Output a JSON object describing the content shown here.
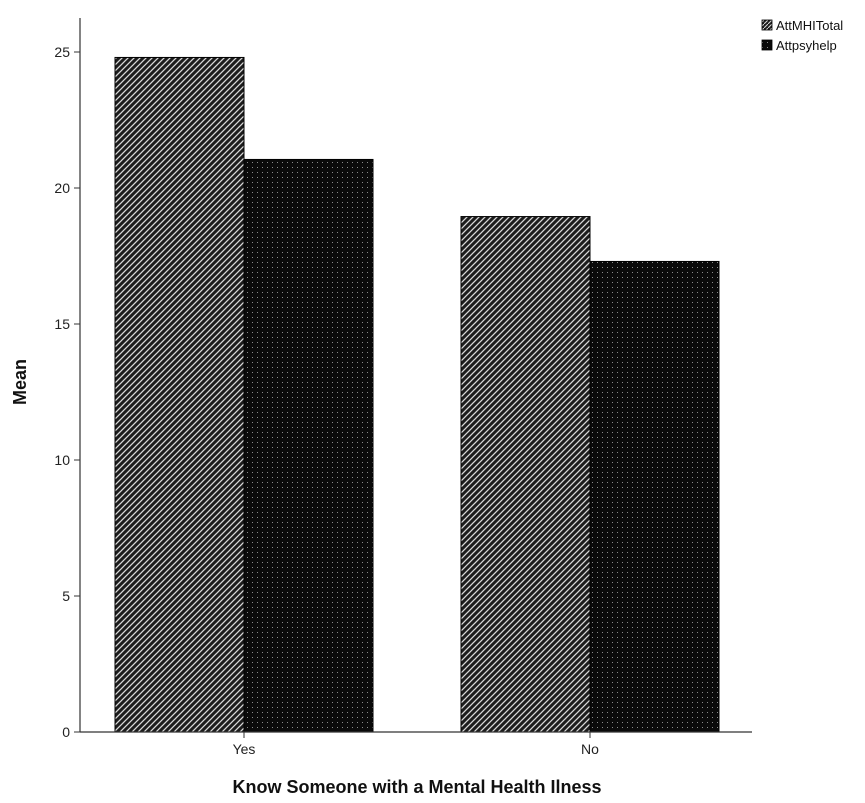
{
  "chart_data": {
    "type": "bar",
    "xlabel": "Know Someone with a Mental Health Ilness",
    "ylabel": "Mean",
    "categories": [
      "Yes",
      "No"
    ],
    "series": [
      {
        "name": "AttMHITotal",
        "values": [
          24.8,
          18.95
        ],
        "pattern": "diagonal-hatch",
        "color": "#1a1a1a"
      },
      {
        "name": "Attpsyhelp",
        "values": [
          21.05,
          17.3
        ],
        "pattern": "dotted-black",
        "color": "#0a0a0a"
      }
    ],
    "ylim": [
      0,
      27
    ],
    "yticks": [
      0,
      5,
      10,
      15,
      20,
      25
    ],
    "legend_position": "top-right",
    "grid": false
  }
}
